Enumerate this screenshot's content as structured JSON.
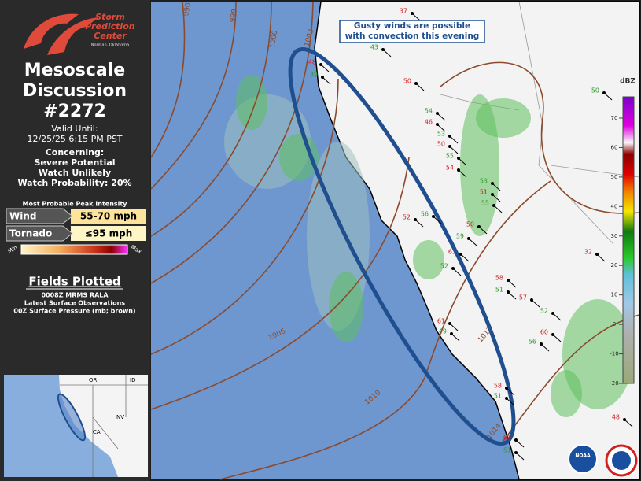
{
  "sidebar": {
    "logo": {
      "line1": "Storm",
      "line2": "Prediction",
      "line3": "Center",
      "location": "Norman, Oklahoma"
    },
    "title": [
      "Mesoscale",
      "Discussion",
      "#2272"
    ],
    "valid_label": "Valid Until:",
    "valid_time": "12/25/25 6:15 PM PST",
    "concerning": [
      "Concerning:",
      "Severe Potential",
      "Watch Unlikely",
      "Watch Probability: 20%"
    ],
    "intensity": {
      "heading": "Most Probable Peak Intensity",
      "rows": [
        {
          "label": "Wind",
          "value": "55-70 mph"
        },
        {
          "label": "Tornado",
          "value": "≤95 mph"
        }
      ],
      "scale_min": "Min",
      "scale_max": "Max"
    },
    "fields": {
      "heading": "Fields Plotted",
      "items": [
        "0008Z MRMS RALA",
        "Latest Surface Observations",
        "00Z Surface Pressure (mb; brown)"
      ]
    },
    "inset_labels": [
      "OR",
      "ID",
      "NV",
      "CA"
    ]
  },
  "map": {
    "annotation": [
      "Gusty winds are possible",
      "with convection this evening"
    ],
    "isobar_labels": [
      "990",
      "998",
      "1000",
      "1002",
      "1006",
      "1010",
      "1012",
      "1014"
    ],
    "colorbar": {
      "unit": "dBZ",
      "ticks": [
        "70",
        "60",
        "50",
        "40",
        "30",
        "20",
        "10",
        "0",
        "-10",
        "-20"
      ]
    },
    "stations": [
      "37",
      "43",
      "48",
      "39",
      "50",
      "54",
      "46",
      "53",
      "50",
      "55",
      "54",
      "53",
      "51",
      "56",
      "52",
      "55",
      "50",
      "59",
      "63",
      "52",
      "58",
      "51",
      "57",
      "52",
      "61",
      "49",
      "60",
      "56",
      "58",
      "51",
      "60",
      "51",
      "32",
      "50",
      "48"
    ],
    "logos": [
      "NOAA"
    ]
  }
}
